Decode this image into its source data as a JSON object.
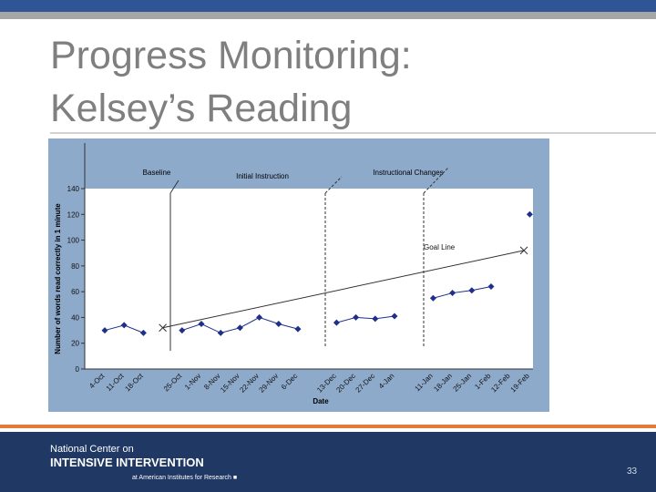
{
  "slide": {
    "title_lines": [
      "Progress Monitoring:",
      "Kelsey’s Reading"
    ],
    "footer": {
      "line1": "National Center on",
      "line2": "INTENSIVE INTERVENTION",
      "line3": "at American Institutes for Research ■",
      "page": "33"
    }
  },
  "chart_data": {
    "type": "line",
    "x_label": "Date",
    "y_label": "Number of words read correctly in 1 minute",
    "categories": [
      "4-Oct",
      "11-Oct",
      "18-Oct",
      null,
      "25-Oct",
      "1-Nov",
      "8-Nov",
      "15-Nov",
      "22-Nov",
      "29-Nov",
      "6-Dec",
      null,
      "13-Dec",
      "20-Dec",
      "27-Dec",
      "4-Jan",
      null,
      "11-Jan",
      "18-Jan",
      "25-Jan",
      "1-Feb",
      "12-Feb",
      "19-Feb"
    ],
    "values": [
      30,
      34,
      28,
      null,
      30,
      35,
      28,
      32,
      40,
      35,
      31,
      null,
      36,
      40,
      39,
      41,
      null,
      55,
      59,
      61,
      64,
      null,
      120
    ],
    "color": "#1f2f8a",
    "ylim": [
      0,
      140
    ],
    "yticks": [
      0,
      20,
      40,
      60,
      80,
      100,
      120,
      140
    ],
    "goal_line": {
      "label": "Goal Line",
      "values": [
        32,
        92
      ]
    },
    "annotations": [
      "Baseline",
      "Initial Instruction",
      "Instructional Changes"
    ]
  }
}
